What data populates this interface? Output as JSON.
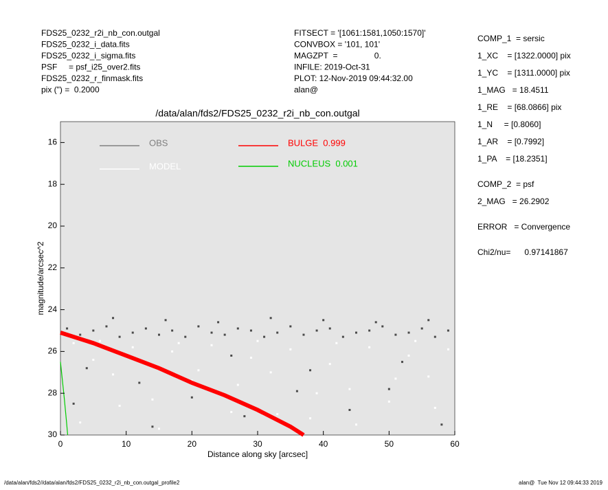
{
  "header": {
    "left": [
      "FDS25_0232_r2i_nb_con.outgal",
      "FDS25_0232_i_data.fits",
      "FDS25_0232_i_sigma.fits",
      "PSF     = psf_i25_over2.fits",
      "FDS25_0232_r_finmask.fits",
      "pix (\") =  0.2000"
    ],
    "middle": [
      "FITSECT = '[1061:1581,1050:1570]'",
      "CONVBOX = '101, 101'",
      "MAGZPT  =                0.",
      "INFILE: 2019-Oct-31",
      "PLOT: 12-Nov-2019 09:44:32.00",
      "alan@"
    ],
    "right": [
      "COMP_1  = sersic",
      "1_XC    = [1322.0000] pix",
      "1_YC    = [1311.0000] pix",
      "1_MAG   = 18.4511",
      "1_RE    = [68.0866] pix",
      "1_N     = [0.8060]",
      "1_AR    = [0.7992]",
      "1_PA    = [18.2351]",
      "COMP_2  = psf",
      "2_MAG   = 26.2902",
      "ERROR   = Convergence",
      "Chi2/nu=      0.97141867"
    ]
  },
  "footer": {
    "left": "/data/alan/fds2//data/alan/fds2/FDS25_0232_r2i_nb_con.outgal_profile2",
    "right": "alan@  Tue Nov 12 09:44:33 2019"
  },
  "chart_data": {
    "type": "scatter",
    "title": "/data/alan/fds2/FDS25_0232_r2i_nb_con.outgal",
    "x_label": "Distance along sky [arcsec]",
    "y_label": "magnitude/arcsec^2",
    "xlim": [
      0,
      60
    ],
    "xticks": [
      0,
      10,
      20,
      30,
      40,
      50,
      60
    ],
    "ylim": [
      30,
      15
    ],
    "yticks": [
      16,
      18,
      20,
      22,
      24,
      26,
      28,
      30
    ],
    "background": "#e5e5e5",
    "series": [
      {
        "name": "OBS",
        "color": "#4a4a4a",
        "legend_color": "#808080",
        "style": "markers",
        "x": [
          1,
          3,
          5,
          7,
          9,
          11,
          13,
          15,
          17,
          19,
          21,
          23,
          25,
          27,
          29,
          31,
          33,
          35,
          37,
          39,
          41,
          43,
          45,
          47,
          49,
          51,
          53,
          55,
          57,
          59,
          4,
          12,
          20,
          28,
          36,
          44,
          52,
          58,
          8,
          16,
          24,
          32,
          40,
          48,
          56,
          2,
          14,
          26,
          38,
          50
        ],
        "values": [
          24.9,
          25.2,
          25.0,
          24.8,
          25.3,
          25.1,
          24.9,
          25.2,
          25.0,
          25.3,
          24.8,
          25.1,
          25.2,
          24.9,
          25.0,
          25.3,
          25.1,
          24.8,
          25.2,
          25.0,
          24.9,
          25.3,
          25.1,
          25.0,
          24.8,
          25.2,
          25.1,
          24.9,
          25.3,
          25.0,
          26.8,
          27.5,
          28.2,
          29.1,
          27.9,
          28.8,
          26.5,
          29.5,
          24.4,
          24.5,
          24.6,
          24.4,
          24.5,
          24.6,
          24.5,
          28.5,
          29.6,
          26.2,
          26.9,
          27.8
        ]
      },
      {
        "name": "MODEL",
        "color": "#ffffff",
        "legend_color": "#ffffff",
        "style": "markers",
        "x": [
          2,
          5,
          8,
          11,
          14,
          17,
          20,
          23,
          26,
          29,
          32,
          35,
          38,
          41,
          44,
          47,
          50,
          53,
          56,
          59,
          3,
          9,
          15,
          21,
          27,
          33,
          39,
          45,
          51,
          57,
          6,
          18,
          30,
          42,
          54
        ],
        "values": [
          25.6,
          26.4,
          27.1,
          25.8,
          28.3,
          26.0,
          27.4,
          25.7,
          28.9,
          26.3,
          27.0,
          25.9,
          29.2,
          26.6,
          27.8,
          25.8,
          28.4,
          26.2,
          27.2,
          25.9,
          29.4,
          28.6,
          29.7,
          26.9,
          27.6,
          29.0,
          28.0,
          29.5,
          27.3,
          28.7,
          25.5,
          25.6,
          25.5,
          25.6,
          25.5
        ]
      },
      {
        "name": "BULGE  0.999",
        "color": "#ff0000",
        "legend_color": "#ff0000",
        "style": "line",
        "x": [
          0,
          5,
          10,
          15,
          20,
          25,
          30,
          35,
          37
        ],
        "values": [
          25.1,
          25.6,
          26.2,
          26.8,
          27.5,
          28.1,
          28.8,
          29.6,
          30
        ]
      },
      {
        "name": "NUCLEUS  0.001",
        "color": "#00cc00",
        "legend_color": "#00cc00",
        "style": "line",
        "x": [
          0,
          0.3,
          0.6,
          0.9,
          1.1
        ],
        "values": [
          26.5,
          27.4,
          28.3,
          29.3,
          30
        ]
      }
    ]
  }
}
